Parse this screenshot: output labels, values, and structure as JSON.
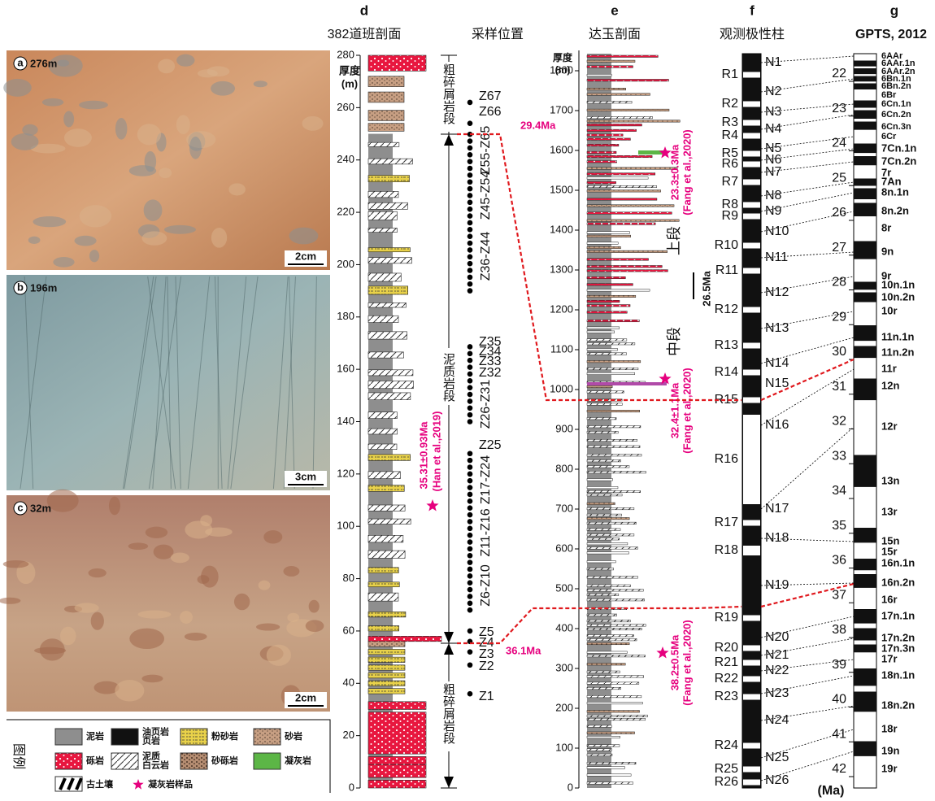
{
  "panels": [
    {
      "letter": "a",
      "depth": "276m",
      "scale": "2cm"
    },
    {
      "letter": "b",
      "depth": "196m",
      "scale": "3cm"
    },
    {
      "letter": "c",
      "depth": "32m",
      "scale": "2cm"
    }
  ],
  "legend": {
    "title": "图例",
    "items": [
      [
        "泥岩"
      ],
      [
        "油页岩",
        "页岩"
      ],
      [
        "粉砂岩"
      ],
      [
        "砂岩"
      ],
      [
        "砾岩"
      ],
      [
        "泥质",
        "白云岩"
      ],
      [
        "砂砾岩"
      ],
      [
        "凝灰岩"
      ],
      [
        "古土壤"
      ],
      [
        "凝灰岩样品"
      ]
    ]
  },
  "section_d": {
    "letter": "d",
    "title": "382道班剖面",
    "axis_label": [
      "厚度",
      "(m)"
    ],
    "ticks": [
      0,
      20,
      40,
      60,
      80,
      100,
      120,
      140,
      160,
      180,
      200,
      220,
      240,
      260,
      280
    ],
    "tuff_age": "35.31±0.93Ma",
    "tuff_ref": "(Han et al.,2019)"
  },
  "sampling": {
    "title": "采样位置",
    "units": [
      "粗碎屑岩段",
      "泥质岩段",
      "粗碎屑岩段"
    ],
    "samples": [
      "Z67",
      "Z66",
      "Z55-Z65",
      "Z45-Z54",
      "Z36-Z44",
      "Z35",
      "Z34",
      "Z33",
      "Z32",
      "Z26-Z31",
      "Z25",
      "Z17-Z24",
      "Z11-Z16",
      "Z6-Z10",
      "Z5",
      "Z4",
      "Z3",
      "Z2",
      "Z1"
    ],
    "ages": [
      "29.4Ma",
      "36.1Ma"
    ]
  },
  "section_e": {
    "letter": "e",
    "title": "达玉剖面",
    "axis_label": [
      "厚度",
      "(m)"
    ],
    "ticks": [
      0,
      100,
      200,
      300,
      400,
      500,
      600,
      700,
      800,
      900,
      1000,
      1100,
      1200,
      1300,
      1400,
      1500,
      1600,
      1700,
      1800
    ],
    "units": [
      "上段",
      "中段"
    ],
    "boundary_age": "26.5Ma",
    "tuff_samples": [
      {
        "age": "23.3±0.3Ma",
        "ref": "(Fang et al.,2020)"
      },
      {
        "age": "32.4±1.1Ma",
        "ref": "(Fang et al.,2020)"
      },
      {
        "age": "38.2±0.5Ma",
        "ref": "(Fang et al.,2020)"
      }
    ]
  },
  "polarity": {
    "letter": "f",
    "title": "观测极性柱",
    "reversed": [
      "R1",
      "R2",
      "R3",
      "R4",
      "R5",
      "R6",
      "R7",
      "R8",
      "R9",
      "R10",
      "R11",
      "R12",
      "R13",
      "R14",
      "R15",
      "R16",
      "R17",
      "R18",
      "R19",
      "R20",
      "R21",
      "R22",
      "R23",
      "R24",
      "R25",
      "R26"
    ],
    "normal": [
      "N1",
      "N2",
      "N3",
      "N4",
      "N5",
      "N6",
      "N7",
      "N8",
      "N9",
      "N10",
      "N11",
      "N12",
      "N13",
      "N14",
      "N15",
      "N16",
      "N17",
      "N18",
      "N19",
      "N20",
      "N21",
      "N22",
      "N23",
      "N24",
      "N25",
      "N26"
    ]
  },
  "gpts": {
    "letter": "g",
    "title": "GPTS, 2012",
    "ages": [
      22,
      23,
      24,
      25,
      26,
      27,
      28,
      29,
      30,
      31,
      32,
      33,
      34,
      35,
      36,
      37,
      38,
      39,
      40,
      41,
      42
    ],
    "unit": "(Ma)",
    "chrons": [
      "6AAr",
      "6AAr.1n",
      "6AAr.2n",
      "6Bn.1n",
      "6Bn.2n",
      "6Br",
      "6Cn.1n",
      "6Cn.2n",
      "6Cn.3n",
      "6Cr",
      "7Cn.1n",
      "7Cn.2n",
      "7r",
      "7An",
      "8n.1n",
      "8n.2n",
      "8r",
      "9n",
      "9r",
      "10n.1n",
      "10n.2n",
      "10r",
      "11n.1n",
      "11n.2n",
      "11r",
      "12n",
      "12r",
      "13n",
      "13r",
      "15n",
      "15r",
      "16n.1n",
      "16n.2n",
      "16r",
      "17n.1n",
      "17n.2n",
      "17n.3n",
      "17r",
      "18n.1n",
      "18n.2n",
      "18r",
      "19n",
      "19r"
    ]
  }
}
